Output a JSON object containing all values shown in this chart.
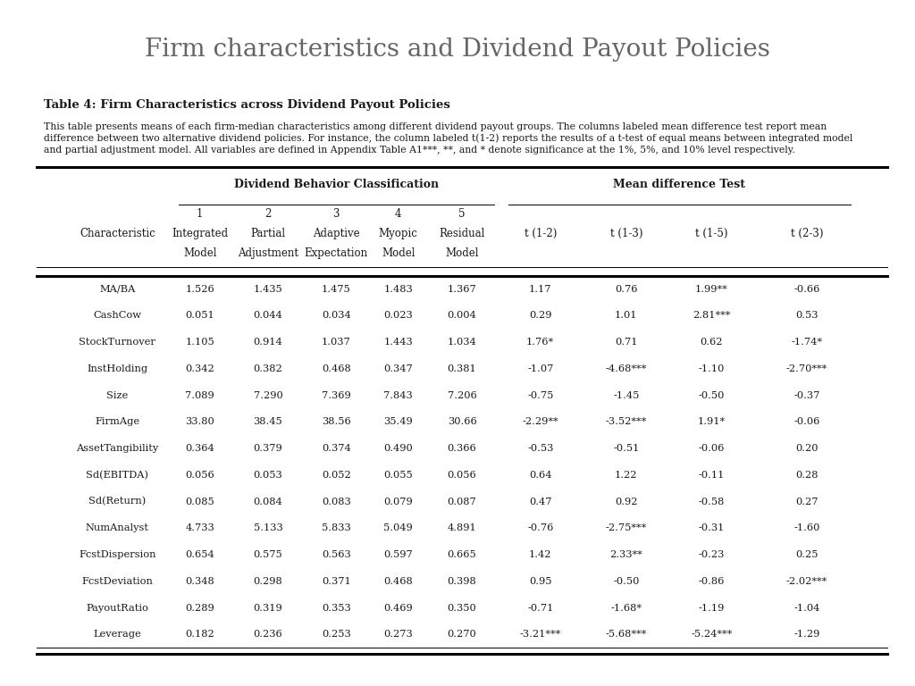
{
  "title": "Firm characteristics and Dividend Payout Policies",
  "table_title": "Table 4: Firm Characteristics across Dividend Payout Policies",
  "description_line1": "This table presents means of each firm-median characteristics among different dividend payout groups. The columns labeled mean difference test report mean",
  "description_line2": "difference between two alternative dividend policies. For instance, the column labeled t(1-2) reports the results of a t-test of equal means between integrated model",
  "description_line3": "and partial adjustment model. All variables are defined in Appendix Table A1***, **, and * denote significance at the 1%, 5%, and 10% level respectively.",
  "col_group1_label": "Dividend Behavior Classification",
  "col_group2_label": "Mean difference Test",
  "header_row1": [
    "",
    "1",
    "2",
    "3",
    "4",
    "5",
    "",
    "",
    "",
    ""
  ],
  "header_row2": [
    "Characteristic",
    "Integrated",
    "Partial",
    "Adaptive",
    "Myopic",
    "Residual",
    "t (1-2)",
    "t (1-3)",
    "t (1-5)",
    "t (2-3)"
  ],
  "header_row3": [
    "",
    "Model",
    "Adjustment",
    "Expectation",
    "Model",
    "Model",
    "",
    "",
    "",
    ""
  ],
  "rows": [
    [
      "MA/BA",
      "1.526",
      "1.435",
      "1.475",
      "1.483",
      "1.367",
      "1.17",
      "0.76",
      "1.99**",
      "-0.66"
    ],
    [
      "CashCow",
      "0.051",
      "0.044",
      "0.034",
      "0.023",
      "0.004",
      "0.29",
      "1.01",
      "2.81***",
      "0.53"
    ],
    [
      "StockTurnover",
      "1.105",
      "0.914",
      "1.037",
      "1.443",
      "1.034",
      "1.76*",
      "0.71",
      "0.62",
      "-1.74*"
    ],
    [
      "InstHolding",
      "0.342",
      "0.382",
      "0.468",
      "0.347",
      "0.381",
      "-1.07",
      "-4.68***",
      "-1.10",
      "-2.70***"
    ],
    [
      "Size",
      "7.089",
      "7.290",
      "7.369",
      "7.843",
      "7.206",
      "-0.75",
      "-1.45",
      "-0.50",
      "-0.37"
    ],
    [
      "FirmAge",
      "33.80",
      "38.45",
      "38.56",
      "35.49",
      "30.66",
      "-2.29**",
      "-3.52***",
      "1.91*",
      "-0.06"
    ],
    [
      "AssetTangibility",
      "0.364",
      "0.379",
      "0.374",
      "0.490",
      "0.366",
      "-0.53",
      "-0.51",
      "-0.06",
      "0.20"
    ],
    [
      "Sd(EBITDA)",
      "0.056",
      "0.053",
      "0.052",
      "0.055",
      "0.056",
      "0.64",
      "1.22",
      "-0.11",
      "0.28"
    ],
    [
      "Sd(Return)",
      "0.085",
      "0.084",
      "0.083",
      "0.079",
      "0.087",
      "0.47",
      "0.92",
      "-0.58",
      "0.27"
    ],
    [
      "NumAnalyst",
      "4.733",
      "5.133",
      "5.833",
      "5.049",
      "4.891",
      "-0.76",
      "-2.75***",
      "-0.31",
      "-1.60"
    ],
    [
      "FcstDispersion",
      "0.654",
      "0.575",
      "0.563",
      "0.597",
      "0.665",
      "1.42",
      "2.33**",
      "-0.23",
      "0.25"
    ],
    [
      "FcstDeviation",
      "0.348",
      "0.298",
      "0.371",
      "0.468",
      "0.398",
      "0.95",
      "-0.50",
      "-0.86",
      "-2.02***"
    ],
    [
      "PayoutRatio",
      "0.289",
      "0.319",
      "0.353",
      "0.469",
      "0.350",
      "-0.71",
      "-1.68*",
      "-1.19",
      "-1.04"
    ],
    [
      "Leverage",
      "0.182",
      "0.236",
      "0.253",
      "0.273",
      "0.270",
      "-3.21***",
      "-5.68***",
      "-5.24***",
      "-1.29"
    ]
  ],
  "bg_color": "#efefef",
  "table_bg": "#ffffff",
  "text_color": "#1a1a1a",
  "title_color": "#666666",
  "title_fontsize": 20,
  "body_fontsize": 8.2,
  "header_fontsize": 8.5
}
